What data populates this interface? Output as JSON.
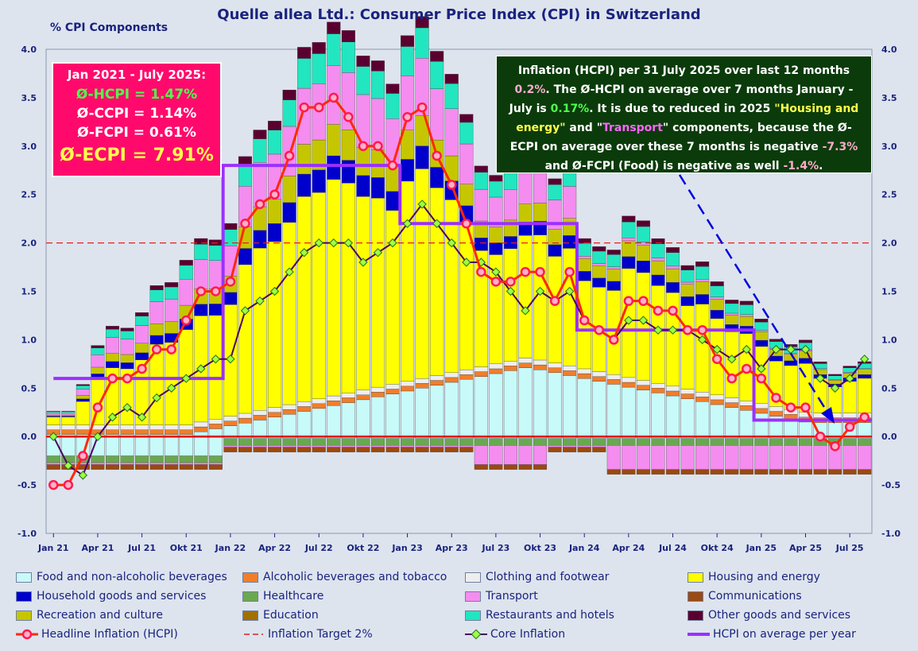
{
  "chart_data": {
    "type": "bar",
    "title": "Quelle allea Ltd.: Consumer Price Index (CPI) in Switzerland",
    "ylabel": "% CPI Components",
    "ylim": [
      -1.0,
      4.0
    ],
    "yticks": [
      "4.0",
      "3.5",
      "3.0",
      "2.5",
      "2.0",
      "1.5",
      "1.0",
      "0.5",
      "0.0",
      "-0.5",
      "-1.0"
    ],
    "xtick_labels": [
      "Jan 21",
      "Apr 21",
      "Jul 21",
      "Okt 21",
      "Jan 22",
      "Apr 22",
      "Jul 22",
      "Okt 22",
      "Jan 23",
      "Apr 23",
      "Jul 23",
      "Okt 23",
      "Jan 24",
      "Apr 24",
      "Jul 24",
      "Okt 24",
      "Jan 25",
      "Apr 25",
      "Jul 25"
    ],
    "stacked": true,
    "grid": false,
    "legend_position": "bottom",
    "component_names": [
      "Food and non-alcoholic beverages",
      "Alcoholic beverages and tobacco",
      "Clothing and footwear",
      "Housing and energy",
      "Household goods and services",
      "Healthcare",
      "Transport",
      "Communications",
      "Recreation and culture",
      "Education",
      "Restaurants and hotels",
      "Other goods and services"
    ],
    "component_colors": [
      "#c8fafa",
      "#f07e2a",
      "#eeeeee",
      "#ffff00",
      "#0000cc",
      "#6aa84f",
      "#f58cf0",
      "#9a4a12",
      "#c6c600",
      "#a07000",
      "#22e6c0",
      "#5a0030"
    ],
    "hcpi": [
      -0.5,
      -0.5,
      -0.2,
      0.3,
      0.6,
      0.6,
      0.7,
      0.9,
      0.9,
      1.2,
      1.5,
      1.5,
      1.6,
      2.2,
      2.4,
      2.5,
      2.9,
      3.4,
      3.4,
      3.5,
      3.3,
      3.0,
      3.0,
      2.8,
      3.3,
      3.4,
      2.9,
      2.6,
      2.2,
      1.7,
      1.6,
      1.6,
      1.7,
      1.7,
      1.4,
      1.7,
      1.2,
      1.1,
      1.0,
      1.4,
      1.4,
      1.3,
      1.3,
      1.1,
      1.1,
      0.8,
      0.6,
      0.7,
      0.6,
      0.4,
      0.3,
      0.3,
      0.0,
      -0.1,
      0.1,
      0.2
    ],
    "core": [
      0.0,
      -0.3,
      -0.4,
      0.0,
      0.2,
      0.3,
      0.2,
      0.4,
      0.5,
      0.6,
      0.7,
      0.8,
      0.8,
      1.3,
      1.4,
      1.5,
      1.7,
      1.9,
      2.0,
      2.0,
      2.0,
      1.8,
      1.9,
      2.0,
      2.2,
      2.4,
      2.2,
      2.0,
      1.8,
      1.8,
      1.7,
      1.5,
      1.3,
      1.5,
      1.4,
      1.5,
      1.2,
      1.1,
      1.0,
      1.2,
      1.2,
      1.1,
      1.1,
      1.1,
      1.0,
      0.9,
      0.8,
      0.9,
      0.7,
      0.9,
      0.9,
      0.9,
      0.6,
      0.5,
      0.6,
      0.8
    ],
    "hcpi_avg_year": [
      {
        "year": "2021",
        "value": 0.6
      },
      {
        "year": "2022",
        "value": 2.8
      },
      {
        "year": "2023",
        "value": 2.2
      },
      {
        "year": "2024",
        "value": 1.1
      },
      {
        "year": "2025",
        "value": 0.17
      }
    ],
    "inflation_target": 2.0,
    "arrow_annotation": "dashed blue arrow from text box down to Jul 25"
  },
  "labels": {
    "legend_food": "Food and non-alcoholic beverages",
    "legend_alc": "Alcoholic beverages and tobacco",
    "legend_cloth": "Clothing and footwear",
    "legend_housing": "Housing and energy",
    "legend_household": "Household goods and services",
    "legend_health": "Healthcare",
    "legend_transport": "Transport",
    "legend_comm": "Communications",
    "legend_rec": "Recreation and culture",
    "legend_edu": "Education",
    "legend_rest": "Restaurants and hotels",
    "legend_other": "Other goods and services",
    "legend_hcpi": "Headline Inflation (HCPI)",
    "legend_target": "Inflation Target 2%",
    "legend_core": "Core Inflation",
    "legend_avg": "HCPI on average per year"
  },
  "box_left": {
    "line1": "Jan 2021 - July 2025:",
    "line2": "Ø-HCPI  = 1.47%",
    "line3": "Ø-CCPI  = 1.14%",
    "line4": "Ø-FCPI = 0.61%",
    "line5": "Ø-ECPI  = 7.91%"
  },
  "box_right": {
    "p1": "Inflation (HCPI) per 31 July 2025 over last 12 months",
    "v1": "0.2%",
    "p2": ".   The Ø-HCPI on average over 7 months January - July  is ",
    "v2": "0.17%",
    "p3": ".  It is due to reduced in 2025  ",
    "q1": "\"Housing and energy\"",
    "p4": " and \"",
    "q2": "Transport",
    "p5": "\" components, because the Ø-ECPI on average  over these 7 months is negative  ",
    "v3": "-7.3%",
    "p6": " and Ø-FCPI (Food) is negative as well ",
    "v4": "-1.4%",
    "p7": "."
  }
}
